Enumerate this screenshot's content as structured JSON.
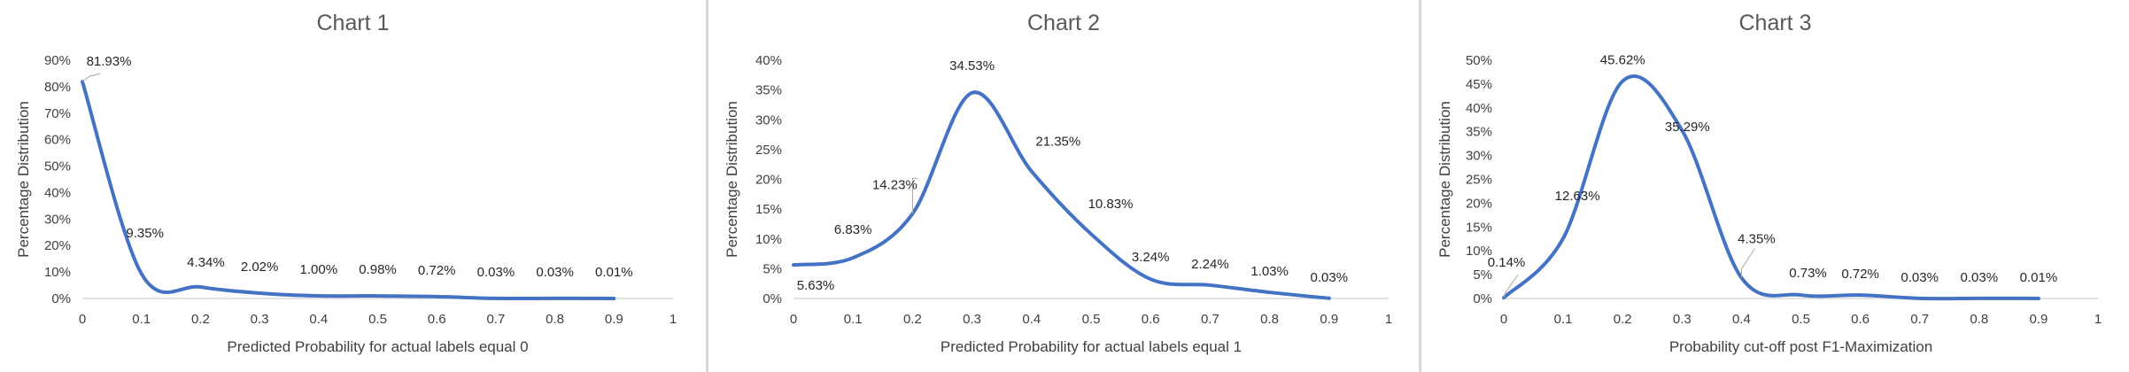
{
  "colors": {
    "series": "#4472C4",
    "axis": "#d9d9d9",
    "text": "#404040",
    "title": "#595959",
    "divider": "#d9d9d9"
  },
  "chart_data": [
    {
      "type": "line",
      "title": "Chart 1",
      "xlabel": "Predicted Probability for actual labels equal 0",
      "ylabel": "Percentage Distribution",
      "xlim": [
        0,
        1
      ],
      "ylim": [
        0,
        90
      ],
      "x_ticks": [
        "0",
        "0.1",
        "0.2",
        "0.3",
        "0.4",
        "0.5",
        "0.6",
        "0.7",
        "0.8",
        "0.9",
        "1"
      ],
      "y_ticks": [
        "0%",
        "10%",
        "20%",
        "30%",
        "40%",
        "50%",
        "60%",
        "70%",
        "80%",
        "90%"
      ],
      "grid": false,
      "smooth": true,
      "x": [
        0,
        0.1,
        0.2,
        0.3,
        0.4,
        0.5,
        0.6,
        0.7,
        0.8,
        0.9
      ],
      "values": [
        81.93,
        9.35,
        4.34,
        2.02,
        1.0,
        0.98,
        0.72,
        0.03,
        0.03,
        0.01
      ],
      "labels": [
        "81.93%",
        "9.35%",
        "4.34%",
        "2.02%",
        "1.00%",
        "0.98%",
        "0.72%",
        "0.03%",
        "0.03%",
        "0.01%"
      ]
    },
    {
      "type": "line",
      "title": "Chart 2",
      "xlabel": "Predicted Probability for actual labels equal 1",
      "ylabel": "Percentage Distribution",
      "xlim": [
        0,
        1
      ],
      "ylim": [
        0,
        40
      ],
      "x_ticks": [
        "0",
        "0.1",
        "0.2",
        "0.3",
        "0.4",
        "0.5",
        "0.6",
        "0.7",
        "0.8",
        "0.9",
        "1"
      ],
      "y_ticks": [
        "0%",
        "5%",
        "10%",
        "15%",
        "20%",
        "25%",
        "30%",
        "35%",
        "40%"
      ],
      "grid": false,
      "smooth": true,
      "x": [
        0,
        0.1,
        0.2,
        0.3,
        0.4,
        0.5,
        0.6,
        0.7,
        0.8,
        0.9
      ],
      "values": [
        5.63,
        6.83,
        14.23,
        34.53,
        21.35,
        10.83,
        3.24,
        2.24,
        1.03,
        0.03
      ],
      "labels": [
        "5.63%",
        "6.83%",
        "14.23%",
        "34.53%",
        "21.35%",
        "10.83%",
        "3.24%",
        "2.24%",
        "1.03%",
        "0.03%"
      ]
    },
    {
      "type": "line",
      "title": "Chart 3",
      "xlabel": "Probability cut-off post F1-Maximization",
      "ylabel": "Percentage Distribution",
      "xlim": [
        0,
        1
      ],
      "ylim": [
        0,
        50
      ],
      "x_ticks": [
        "0",
        "0.1",
        "0.2",
        "0.3",
        "0.4",
        "0.5",
        "0.6",
        "0.7",
        "0.8",
        "0.9",
        "1"
      ],
      "y_ticks": [
        "0%",
        "5%",
        "10%",
        "15%",
        "20%",
        "25%",
        "30%",
        "35%",
        "40%",
        "45%",
        "50%"
      ],
      "grid": false,
      "smooth": true,
      "x": [
        0,
        0.1,
        0.2,
        0.3,
        0.4,
        0.5,
        0.6,
        0.7,
        0.8,
        0.9
      ],
      "values": [
        0.14,
        12.63,
        45.62,
        35.29,
        4.35,
        0.73,
        0.72,
        0.03,
        0.03,
        0.01
      ],
      "labels": [
        "0.14%",
        "12.63%",
        "45.62%",
        "35.29%",
        "4.35%",
        "0.73%",
        "0.72%",
        "0.03%",
        "0.03%",
        "0.01%"
      ]
    }
  ]
}
